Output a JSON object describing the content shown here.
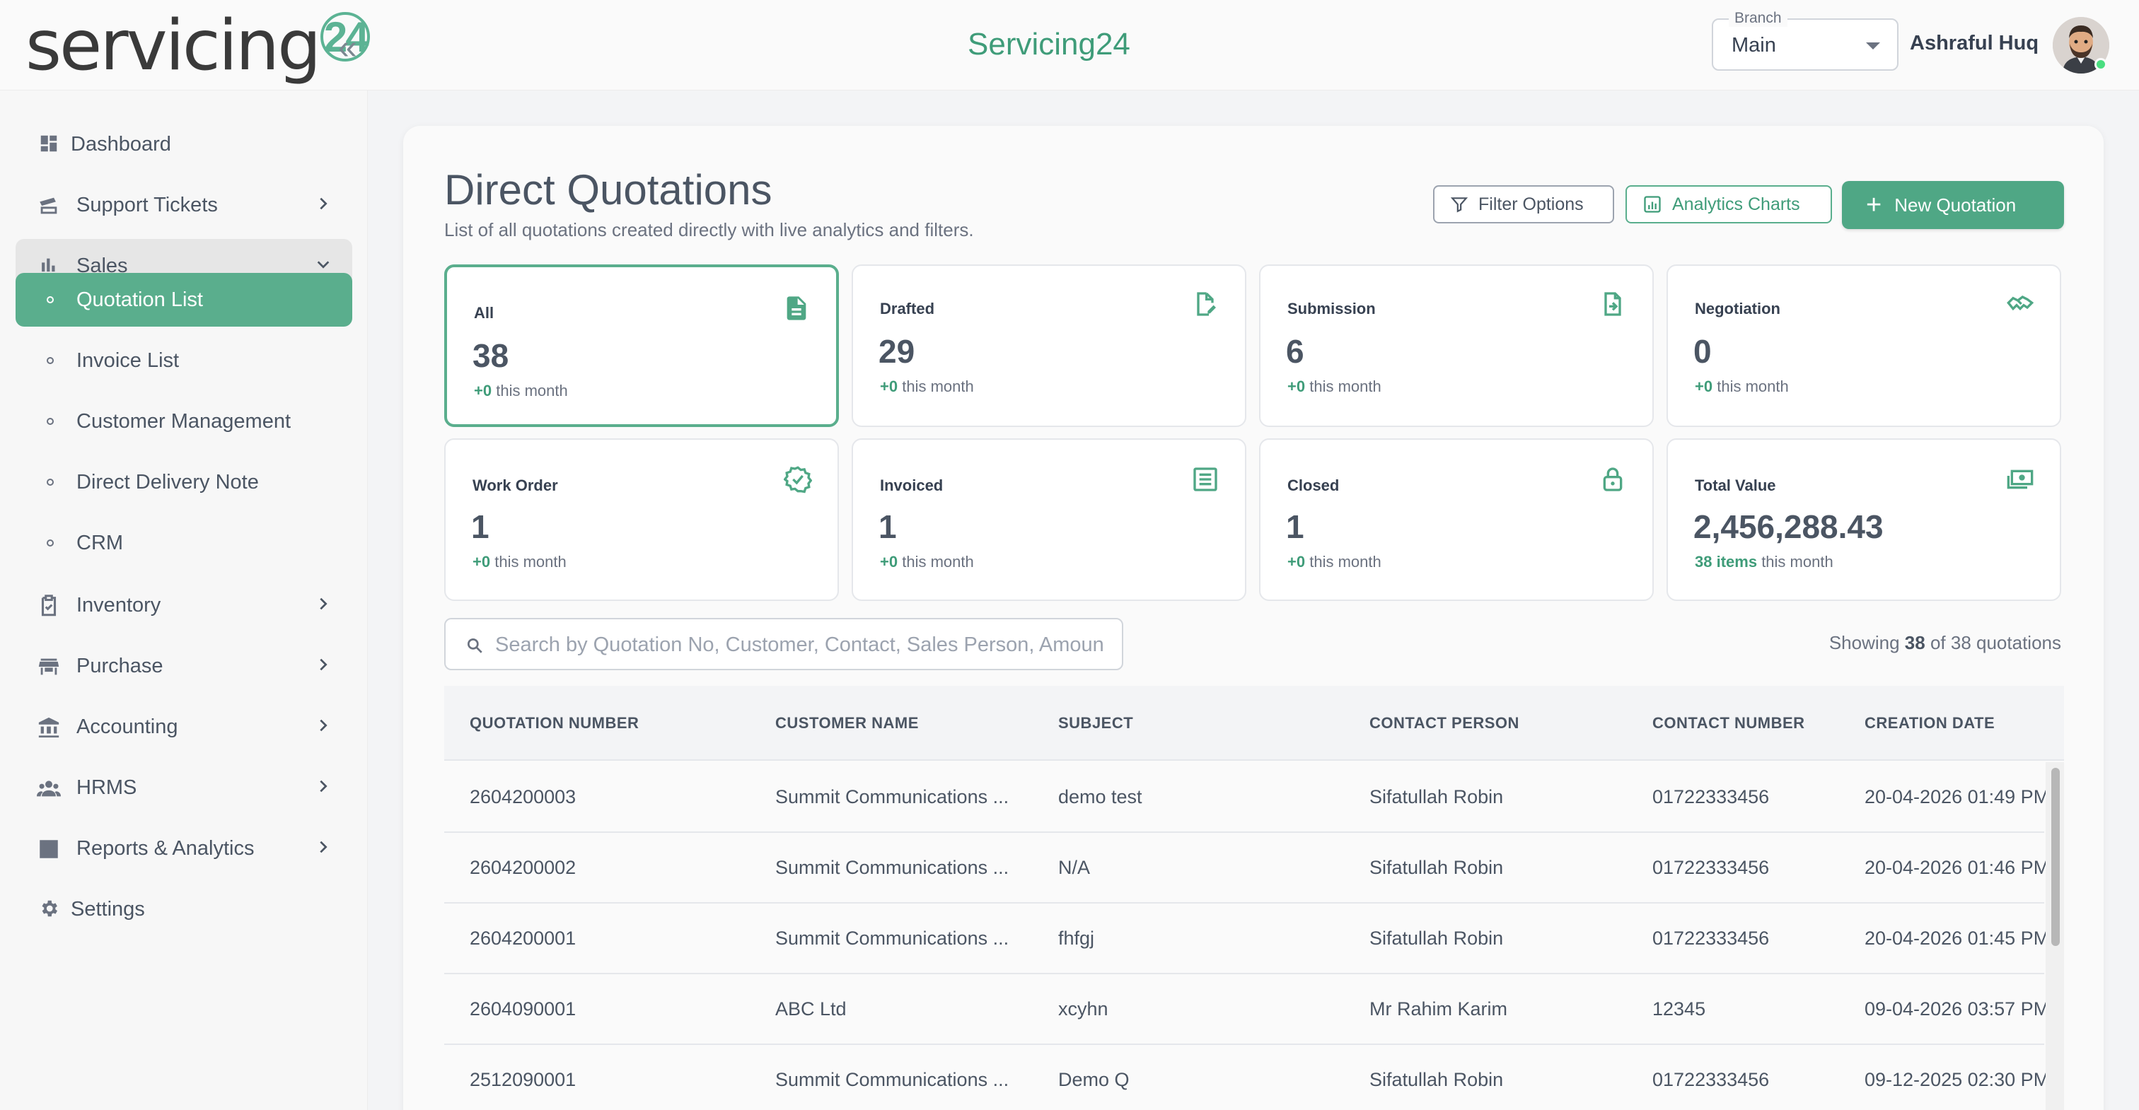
{
  "header": {
    "logo_text": "servicing",
    "logo_num": "24",
    "app_title": "Servicing24",
    "branch_label": "Branch",
    "branch_value": "Main",
    "user_name": "Ashraful Huq"
  },
  "sidebar": {
    "items": [
      {
        "label": "Dashboard",
        "icon": "dashboard-icon"
      },
      {
        "label": "Support Tickets",
        "icon": "ticket-icon"
      },
      {
        "label": "Sales",
        "icon": "bar-chart-icon"
      },
      {
        "label": "Inventory",
        "icon": "clipboard-check-icon"
      },
      {
        "label": "Purchase",
        "icon": "store-icon"
      },
      {
        "label": "Accounting",
        "icon": "bank-icon"
      },
      {
        "label": "HRMS",
        "icon": "people-icon"
      },
      {
        "label": "Reports & Analytics",
        "icon": "report-icon"
      },
      {
        "label": "Settings",
        "icon": "gear-icon"
      }
    ],
    "sales_sub": [
      "Quotation List",
      "Invoice List",
      "Customer Management",
      "Direct Delivery Note",
      "CRM"
    ]
  },
  "main": {
    "title": "Direct Quotations",
    "subtitle": "List of all quotations created directly with live analytics and filters.",
    "filter_btn": "Filter Options",
    "analytics_btn": "Analytics Charts",
    "new_btn": "New Quotation"
  },
  "stats": [
    {
      "label": "All",
      "value": "38",
      "delta": "+0",
      "suffix": "this month",
      "icon": "document-icon"
    },
    {
      "label": "Drafted",
      "value": "29",
      "delta": "+0",
      "suffix": "this month",
      "icon": "edit-document-icon"
    },
    {
      "label": "Submission",
      "value": "6",
      "delta": "+0",
      "suffix": "this month",
      "icon": "file-arrow-icon"
    },
    {
      "label": "Negotiation",
      "value": "0",
      "delta": "+0",
      "suffix": "this month",
      "icon": "handshake-icon"
    },
    {
      "label": "Work Order",
      "value": "1",
      "delta": "+0",
      "suffix": "this month",
      "icon": "verified-badge-icon"
    },
    {
      "label": "Invoiced",
      "value": "1",
      "delta": "+0",
      "suffix": "this month",
      "icon": "list-document-icon"
    },
    {
      "label": "Closed",
      "value": "1",
      "delta": "+0",
      "suffix": "this month",
      "icon": "lock-icon"
    },
    {
      "label": "Total Value",
      "value": "2,456,288.43",
      "delta": "38 items",
      "suffix": "this month",
      "icon": "money-icon"
    }
  ],
  "search": {
    "placeholder": "Search by Quotation No, Customer, Contact, Sales Person, Amount...",
    "showing_prefix": "Showing",
    "showing_count": "38",
    "showing_suffix": "of 38 quotations"
  },
  "table": {
    "headers": [
      "QUOTATION NUMBER",
      "CUSTOMER NAME",
      "SUBJECT",
      "CONTACT PERSON",
      "CONTACT NUMBER",
      "CREATION DATE"
    ],
    "rows": [
      [
        "2604200003",
        "Summit Communications ...",
        "demo test",
        "Sifatullah Robin",
        "01722333456",
        "20-04-2026 01:49 PM"
      ],
      [
        "2604200002",
        "Summit Communications ...",
        "N/A",
        "Sifatullah Robin",
        "01722333456",
        "20-04-2026 01:46 PM"
      ],
      [
        "2604200001",
        "Summit Communications ...",
        "fhfgj",
        "Sifatullah Robin",
        "01722333456",
        "20-04-2026 01:45 PM"
      ],
      [
        "2604090001",
        "ABC Ltd",
        "xcyhn",
        "Mr Rahim Karim",
        "12345",
        "09-04-2026 03:57 PM"
      ],
      [
        "2512090001",
        "Summit Communications ...",
        "Demo Q",
        "Sifatullah Robin",
        "01722333456",
        "09-12-2025 02:30 PM"
      ]
    ]
  },
  "colors": {
    "accent": "#5aae8d",
    "accent_dark": "#3f9c79",
    "text": "#4b5563"
  }
}
